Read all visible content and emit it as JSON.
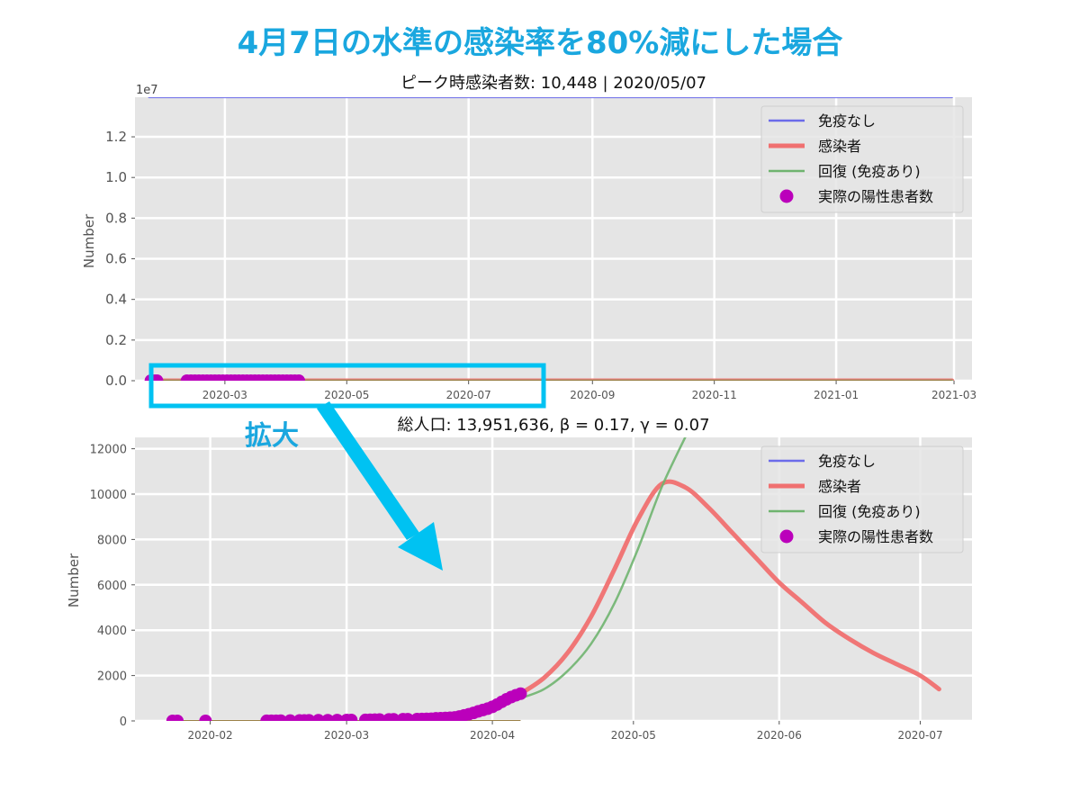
{
  "title": "4月7日の水準の感染率を80%減にした場合",
  "zoom_label": "拡大",
  "colors": {
    "title": "#1aa7df",
    "no_immunity": "#6b6bea",
    "infected": "#f07070",
    "recovered": "#6fb46f",
    "actual": "#bb00bb",
    "zoom_box": "#00c2f2",
    "panel_bg": "#e5e5e5",
    "grid": "#ffffff"
  },
  "legend": {
    "items": [
      {
        "label": "免疫なし",
        "kind": "line",
        "color_key": "no_immunity"
      },
      {
        "label": "感染者",
        "kind": "thick-line",
        "color_key": "infected"
      },
      {
        "label": "回復 (免疫あり)",
        "kind": "line",
        "color_key": "recovered"
      },
      {
        "label": "実際の陽性患者数",
        "kind": "marker",
        "color_key": "actual"
      }
    ]
  },
  "chart_data": [
    {
      "type": "line",
      "title": "ピーク時感染者数: 10,448 | 2020/05/07",
      "xlabel": "",
      "ylabel": "Number",
      "y_scale_note": "1e7",
      "xlim": [
        "2020-01-16",
        "2021-03-10"
      ],
      "ylim": [
        0,
        13950000.0
      ],
      "x_ticks": [
        "2020-03",
        "2020-05",
        "2020-07",
        "2020-09",
        "2020-11",
        "2021-01",
        "2021-03"
      ],
      "y_ticks": [
        "0.0",
        "0.2",
        "0.4",
        "0.6",
        "0.8",
        "1.0",
        "1.2"
      ],
      "y_tick_values": [
        0,
        2000000.0,
        4000000.0,
        6000000.0,
        8000000.0,
        10000000.0,
        12000000.0
      ],
      "grid": true,
      "legend_position": "top-right",
      "series": [
        {
          "name": "免疫なし",
          "color_key": "no_immunity",
          "x": [
            "2020-01-23",
            "2021-02-28"
          ],
          "y": [
            13951636,
            13951636
          ]
        },
        {
          "name": "感染者",
          "color_key": "infected",
          "x": [
            "2020-01-23",
            "2021-02-28"
          ],
          "y": [
            0,
            0
          ]
        },
        {
          "name": "回復 (免疫あり)",
          "color_key": "recovered",
          "x": [
            "2020-01-23",
            "2021-02-28"
          ],
          "y": [
            0,
            0
          ]
        }
      ],
      "scatter": {
        "name": "実際の陽性患者数",
        "color_key": "actual",
        "x_start": "2020-01-24",
        "x_end": "2020-04-07",
        "y": 0
      }
    },
    {
      "type": "line",
      "title": "総人口: 13,951,636, β = 0.17,  γ = 0.07",
      "xlabel": "",
      "ylabel": "Number",
      "xlim": [
        "2020-01-16",
        "2020-07-12"
      ],
      "ylim": [
        0,
        12500
      ],
      "x_ticks": [
        "2020-02",
        "2020-03",
        "2020-04",
        "2020-05",
        "2020-06",
        "2020-07"
      ],
      "y_ticks": [
        "0",
        "2000",
        "4000",
        "6000",
        "8000",
        "10000",
        "12000"
      ],
      "y_tick_values": [
        0,
        2000,
        4000,
        6000,
        8000,
        10000,
        12000
      ],
      "grid": true,
      "legend_position": "top-right",
      "series": [
        {
          "name": "感染者",
          "color_key": "infected",
          "x": [
            "2020-04-07",
            "2020-04-12",
            "2020-04-17",
            "2020-04-22",
            "2020-04-27",
            "2020-05-02",
            "2020-05-07",
            "2020-05-12",
            "2020-05-17",
            "2020-05-22",
            "2020-05-27",
            "2020-06-01",
            "2020-06-06",
            "2020-06-11",
            "2020-06-16",
            "2020-06-21",
            "2020-06-26",
            "2020-07-01",
            "2020-07-05"
          ],
          "y": [
            1200,
            1900,
            3000,
            4600,
            6700,
            8900,
            10448,
            10300,
            9400,
            8300,
            7200,
            6100,
            5200,
            4300,
            3600,
            3000,
            2500,
            2000,
            1400
          ]
        },
        {
          "name": "回復 (免疫あり)",
          "color_key": "recovered",
          "x": [
            "2020-04-07",
            "2020-04-12",
            "2020-04-17",
            "2020-04-22",
            "2020-04-27",
            "2020-05-02",
            "2020-05-07",
            "2020-05-12"
          ],
          "y": [
            1000,
            1400,
            2200,
            3400,
            5200,
            7600,
            10300,
            12500
          ]
        }
      ],
      "baseline": {
        "x": [
          "2020-01-23",
          "2020-04-07"
        ],
        "y": [
          0,
          0
        ]
      },
      "scatter": {
        "name": "実際の陽性患者数",
        "color_key": "actual",
        "x": [
          "2020-01-24",
          "2020-01-25",
          "2020-01-31",
          "2020-02-13",
          "2020-02-14",
          "2020-02-15",
          "2020-02-16",
          "2020-02-18",
          "2020-02-20",
          "2020-02-21",
          "2020-02-22",
          "2020-02-24",
          "2020-02-26",
          "2020-02-28",
          "2020-03-01",
          "2020-03-02",
          "2020-03-05",
          "2020-03-06",
          "2020-03-07",
          "2020-03-08",
          "2020-03-10",
          "2020-03-11",
          "2020-03-13",
          "2020-03-14",
          "2020-03-16",
          "2020-03-17",
          "2020-03-18",
          "2020-03-19",
          "2020-03-20",
          "2020-03-21",
          "2020-03-22",
          "2020-03-23",
          "2020-03-24",
          "2020-03-25",
          "2020-03-26",
          "2020-03-27",
          "2020-03-28",
          "2020-03-29",
          "2020-03-30",
          "2020-03-31",
          "2020-04-01",
          "2020-04-02",
          "2020-04-03",
          "2020-04-04",
          "2020-04-05",
          "2020-04-06",
          "2020-04-07"
        ],
        "y": [
          1,
          1,
          2,
          3,
          4,
          5,
          10,
          14,
          20,
          22,
          25,
          28,
          31,
          37,
          39,
          41,
          44,
          52,
          57,
          61,
          64,
          67,
          73,
          76,
          80,
          83,
          88,
          95,
          113,
          120,
          130,
          140,
          155,
          195,
          245,
          295,
          350,
          420,
          480,
          540,
          620,
          720,
          840,
          950,
          1050,
          1130,
          1200
        ]
      }
    }
  ]
}
